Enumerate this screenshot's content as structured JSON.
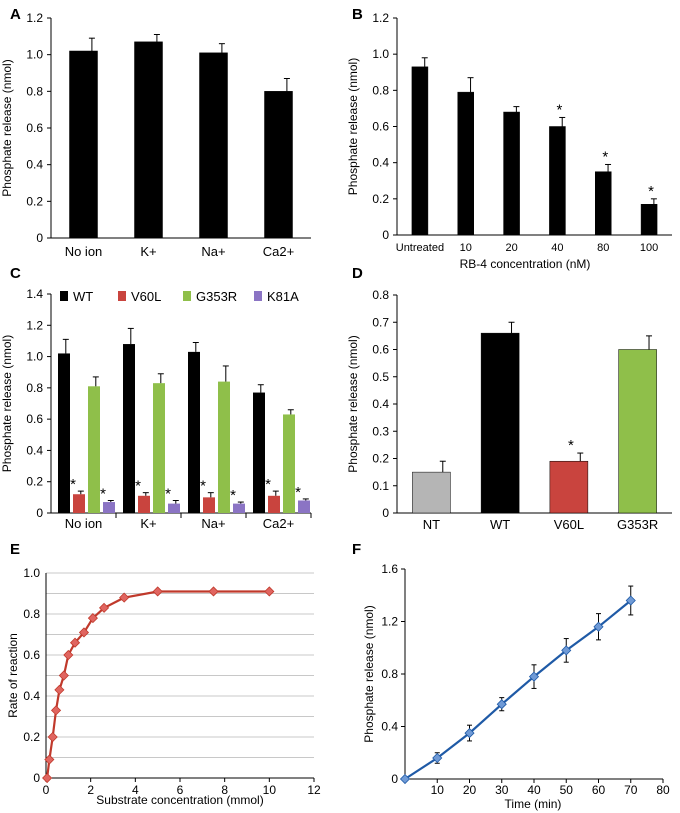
{
  "colors": {
    "black": "#000000",
    "red": "#c9443e",
    "green": "#8fbf4a",
    "purple": "#8b74c4",
    "gray": "#b5b5b5",
    "redline": "#c0392b",
    "redmarker": "#e06560",
    "blueline": "#1f5aa6",
    "bluemarker": "#6f9ad6"
  },
  "chart_data": [
    {
      "panel": "A",
      "type": "bar",
      "ylabel": "Phosphate release (nmol)",
      "xlabel": "",
      "ylim": [
        0,
        1.2
      ],
      "yticks": [
        "0",
        "0.2",
        "0.4",
        "0.6",
        "0.8",
        "1.0",
        "1.2"
      ],
      "categories": [
        "No ion",
        "K+",
        "Na+",
        "Ca2+"
      ],
      "values": [
        1.02,
        1.07,
        1.01,
        0.8
      ],
      "errors": [
        0.07,
        0.04,
        0.05,
        0.07
      ],
      "sig": [
        "",
        "",
        "",
        ""
      ]
    },
    {
      "panel": "B",
      "type": "bar",
      "ylabel": "Phosphate release (nmol)",
      "xlabel": "RB-4 concentration (nM)",
      "ylim": [
        0,
        1.2
      ],
      "yticks": [
        "0",
        "0.2",
        "0.4",
        "0.6",
        "0.8",
        "1.0",
        "1.2"
      ],
      "categories": [
        "Untreated",
        "10",
        "20",
        "40",
        "80",
        "100"
      ],
      "values": [
        0.93,
        0.79,
        0.68,
        0.6,
        0.35,
        0.17
      ],
      "errors": [
        0.05,
        0.08,
        0.03,
        0.05,
        0.04,
        0.03
      ],
      "sig": [
        "",
        "",
        "",
        "*",
        "*",
        "*"
      ]
    },
    {
      "panel": "C",
      "type": "bar",
      "ylabel": "Phosphate release (nmol)",
      "xlabel": "",
      "ylim": [
        0,
        1.4
      ],
      "yticks": [
        "0",
        "0.2",
        "0.4",
        "0.6",
        "0.8",
        "1.0",
        "1.2",
        "1.4"
      ],
      "categories": [
        "No ion",
        "K+",
        "Na+",
        "Ca2+"
      ],
      "series": [
        {
          "name": "WT",
          "values": [
            1.02,
            1.08,
            1.03,
            0.77
          ],
          "errors": [
            0.09,
            0.1,
            0.06,
            0.05
          ],
          "sig": [
            "",
            "",
            "",
            ""
          ]
        },
        {
          "name": "V60L",
          "values": [
            0.12,
            0.11,
            0.1,
            0.11
          ],
          "errors": [
            0.02,
            0.02,
            0.03,
            0.03
          ],
          "sig": [
            "*",
            "*",
            "*",
            "*"
          ]
        },
        {
          "name": "G353R",
          "values": [
            0.81,
            0.83,
            0.84,
            0.63
          ],
          "errors": [
            0.06,
            0.06,
            0.1,
            0.03
          ],
          "sig": [
            "",
            "",
            "",
            ""
          ]
        },
        {
          "name": "K81A",
          "values": [
            0.07,
            0.06,
            0.06,
            0.08
          ],
          "errors": [
            0.01,
            0.02,
            0.01,
            0.01
          ],
          "sig": [
            "*",
            "*",
            "*",
            "*"
          ]
        }
      ]
    },
    {
      "panel": "D",
      "type": "bar",
      "ylabel": "Phosphate release (nmol)",
      "xlabel": "",
      "ylim": [
        0,
        0.8
      ],
      "yticks": [
        "0",
        "0.1",
        "0.2",
        "0.3",
        "0.4",
        "0.5",
        "0.6",
        "0.7",
        "0.8"
      ],
      "categories": [
        "NT",
        "WT",
        "V60L",
        "G353R"
      ],
      "values": [
        0.15,
        0.66,
        0.19,
        0.6
      ],
      "errors": [
        0.04,
        0.04,
        0.03,
        0.05
      ],
      "sig": [
        "",
        "",
        "*",
        ""
      ]
    },
    {
      "panel": "E",
      "type": "line",
      "ylabel": "Rate of reaction",
      "xlabel": "Substrate concentration (mmol)",
      "xlim": [
        0,
        12
      ],
      "ylim": [
        0,
        1.0
      ],
      "xticks": [
        "0",
        "2",
        "4",
        "6",
        "8",
        "10",
        "12"
      ],
      "yticks": [
        "0",
        "0.2",
        "0.4",
        "0.6",
        "0.8",
        "1.0"
      ],
      "x": [
        0.05,
        0.15,
        0.3,
        0.45,
        0.6,
        0.8,
        1.0,
        1.3,
        1.7,
        2.1,
        2.6,
        3.5,
        5.0,
        7.5,
        10.0
      ],
      "y": [
        0.0,
        0.09,
        0.2,
        0.33,
        0.43,
        0.5,
        0.6,
        0.66,
        0.71,
        0.78,
        0.83,
        0.88,
        0.91,
        0.91,
        0.91
      ]
    },
    {
      "panel": "F",
      "type": "line",
      "ylabel": "Phosphate release (nmol)",
      "xlabel": "Time (min)",
      "xlim": [
        0,
        80
      ],
      "ylim": [
        0,
        1.6
      ],
      "xticks": [
        "10",
        "20",
        "30",
        "40",
        "50",
        "60",
        "70",
        "80"
      ],
      "yticks": [
        "0",
        "0.4",
        "0.8",
        "1.2",
        "1.6"
      ],
      "x": [
        0,
        10,
        20,
        30,
        40,
        50,
        60,
        70
      ],
      "y": [
        0.0,
        0.16,
        0.35,
        0.57,
        0.78,
        0.98,
        1.16,
        1.36
      ],
      "errors": [
        0.0,
        0.04,
        0.06,
        0.05,
        0.09,
        0.09,
        0.1,
        0.11
      ]
    }
  ]
}
